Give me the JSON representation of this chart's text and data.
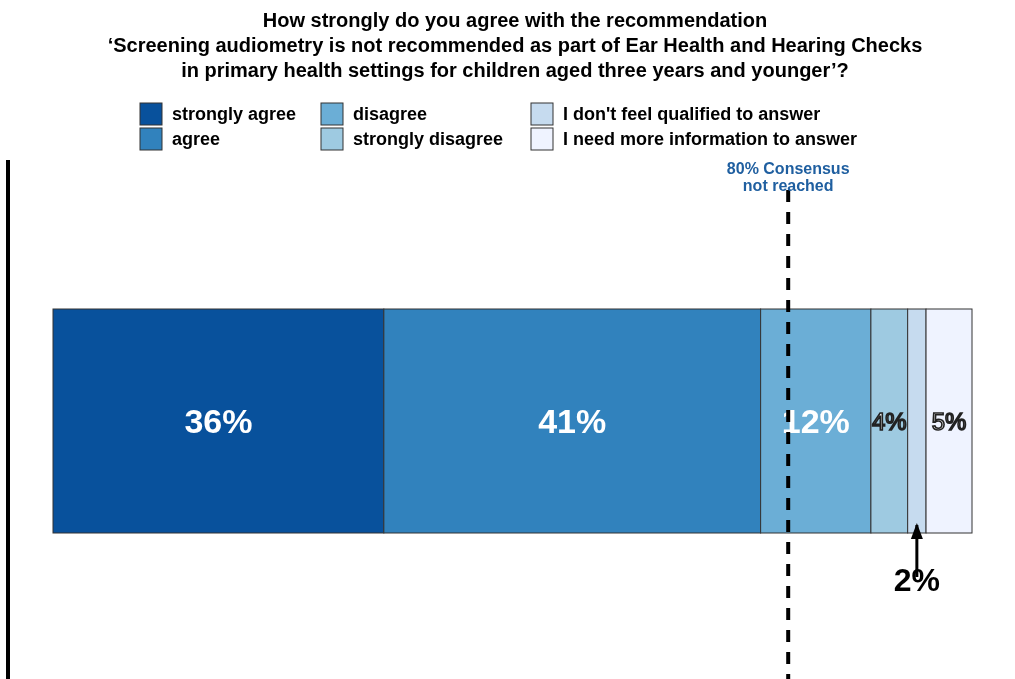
{
  "chart_data": {
    "type": "bar",
    "orientation": "horizontal",
    "stacked": true,
    "title": "How strongly do you agree with the recommendation\n‘Screening audiometry is not recommended as part of Ear Health and Hearing Checks\nin primary health settings for children aged three years and younger’?",
    "categories": [
      null
    ],
    "legend": "top",
    "series": [
      {
        "name": "strongly agree",
        "color": "#08519c",
        "values": [
          36
        ],
        "value_labels": [
          "36%"
        ]
      },
      {
        "name": "agree",
        "color": "#3182bd",
        "values": [
          41
        ],
        "value_labels": [
          "41%"
        ]
      },
      {
        "name": "disagree",
        "color": "#6baed6",
        "values": [
          12
        ],
        "value_labels": [
          "12%"
        ]
      },
      {
        "name": "strongly disagree",
        "color": "#9ecae1",
        "values": [
          4
        ],
        "value_labels": [
          "4%"
        ]
      },
      {
        "name": "I don't feel qualified to answer",
        "color": "#c6dbef",
        "values": [
          2
        ],
        "value_labels": [
          "2%"
        ]
      },
      {
        "name": "I need more information to answer",
        "color": "#eff3ff",
        "values": [
          5
        ],
        "value_labels": [
          "5%"
        ]
      }
    ],
    "ref_lines": [
      {
        "axis": "x",
        "value": 80,
        "label": "80% Consensus\nnot reached",
        "line_style": "dashed"
      }
    ]
  }
}
